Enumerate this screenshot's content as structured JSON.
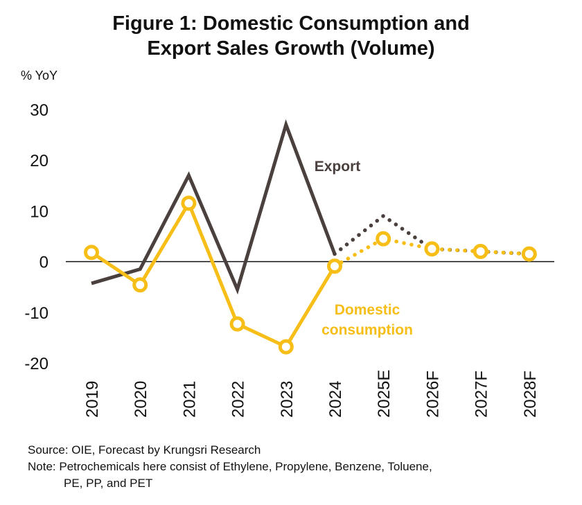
{
  "chart_data": {
    "type": "line",
    "title_lines": [
      "Figure 1: Domestic Consumption and",
      "Export Sales Growth (Volume)"
    ],
    "ylabel": "% YoY",
    "ylim": [
      -20,
      30
    ],
    "yticks": [
      30,
      20,
      10,
      0,
      -10,
      -20
    ],
    "categories": [
      "2019",
      "2020",
      "2021",
      "2022",
      "2023",
      "2024",
      "2025E",
      "2026F",
      "2027F",
      "2028F"
    ],
    "actual_through": "2024",
    "series": [
      {
        "name": "Export",
        "label": "Export",
        "color": "#4a403d",
        "values": [
          -4.3,
          -1.5,
          17,
          -5.5,
          27,
          1.5,
          9,
          2.5,
          2,
          1.5
        ]
      },
      {
        "name": "Domestic consumption",
        "label_lines": [
          "Domestic",
          "consumption"
        ],
        "color": "#f6be17",
        "values": [
          1.8,
          -4.6,
          11.5,
          -12.3,
          -16.8,
          -0.9,
          4.5,
          2.5,
          2,
          1.5
        ]
      }
    ],
    "footer": {
      "source": "Source: OIE, Forecast by Krungsri Research",
      "note_line1": "Note: Petrochemicals here consist of Ethylene, Propylene, Benzene, Toluene,",
      "note_line2": "PE, PP, and PET"
    }
  }
}
